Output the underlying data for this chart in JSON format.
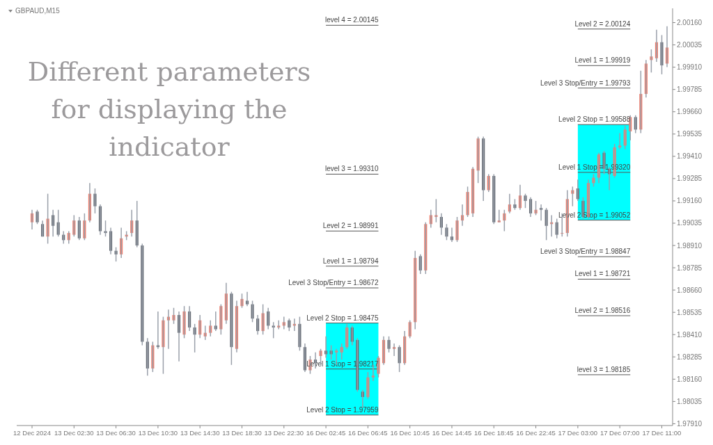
{
  "chart_data": {
    "type": "candlestick",
    "title": "GBPAUD,M15",
    "categories": [
      "12 Dec 2024",
      null,
      null,
      null,
      null,
      null,
      null,
      null,
      "13 Dec 02:30",
      null,
      null,
      null,
      null,
      null,
      null,
      null,
      "13 Dec 06:30",
      null,
      null,
      null,
      null,
      null,
      null,
      null,
      "13 Dec 10:30",
      null,
      null,
      null,
      null,
      null,
      null,
      null,
      "13 Dec 14:30",
      null,
      null,
      null,
      null,
      null,
      null,
      null,
      "13 Dec 18:30",
      null,
      null,
      null,
      null,
      null,
      null,
      null,
      "13 Dec 22:30",
      null,
      null,
      null,
      null,
      null,
      null,
      null,
      "16 Dec 02:45",
      null,
      null,
      null,
      null,
      null,
      null,
      null,
      "16 Dec 06:45",
      null,
      null,
      null,
      null,
      null,
      null,
      null,
      "16 Dec 10:45",
      null,
      null,
      null,
      null,
      null,
      null,
      null,
      "16 Dec 14:45",
      null,
      null,
      null,
      null,
      null,
      null,
      null,
      "16 Dec 18:45",
      null,
      null,
      null,
      null,
      null,
      null,
      null,
      "16 Dec 22:45",
      null,
      null,
      null,
      null,
      null,
      null,
      null,
      "17 Dec 03:00",
      null,
      null,
      null,
      null,
      null,
      null,
      null,
      "17 Dec 07:00",
      null,
      null,
      null,
      null,
      null,
      null,
      null,
      "17 Dec 11:00",
      null
    ],
    "ohlc": [
      [
        1.9904,
        1.9911,
        1.99,
        1.9909
      ],
      [
        1.991,
        1.9911,
        1.9903,
        1.9904
      ],
      [
        1.9903,
        1.9905,
        1.9896,
        1.9896
      ],
      [
        1.9896,
        1.992,
        1.9892,
        1.9906
      ],
      [
        1.9908,
        1.9911,
        1.9896,
        1.9902
      ],
      [
        1.9904,
        1.9911,
        1.9896,
        1.9897
      ],
      [
        1.9897,
        1.9899,
        1.9892,
        1.9894
      ],
      [
        1.9894,
        1.9899,
        1.9892,
        1.9898
      ],
      [
        1.9897,
        1.9908,
        1.9896,
        1.9905
      ],
      [
        1.9905,
        1.9907,
        1.9894,
        1.9895
      ],
      [
        1.9895,
        1.9909,
        1.9894,
        1.9905
      ],
      [
        1.9905,
        1.9926,
        1.9904,
        1.992
      ],
      [
        1.992,
        1.9923,
        1.9909,
        1.9913
      ],
      [
        1.9913,
        1.9914,
        1.9897,
        1.9899
      ],
      [
        1.9899,
        1.9905,
        1.9896,
        1.9898
      ],
      [
        1.9899,
        1.9901,
        1.9886,
        1.9888
      ],
      [
        1.9888,
        1.989,
        1.9882,
        1.9886
      ],
      [
        1.9886,
        1.9901,
        1.9884,
        1.9895
      ],
      [
        1.9896,
        1.9899,
        1.9894,
        1.9897
      ],
      [
        1.9898,
        1.9911,
        1.9896,
        1.9905
      ],
      [
        1.9905,
        1.9916,
        1.989,
        1.9891
      ],
      [
        1.9891,
        1.9892,
        1.9835,
        1.9837
      ],
      [
        1.9837,
        1.9839,
        1.9818,
        1.9822
      ],
      [
        1.9822,
        1.9837,
        1.982,
        1.9835
      ],
      [
        1.9835,
        1.9854,
        1.9833,
        1.9834
      ],
      [
        1.9834,
        1.9851,
        1.9819,
        1.9849
      ],
      [
        1.9849,
        1.9855,
        1.9833,
        1.9851
      ],
      [
        1.9849,
        1.9856,
        1.9847,
        1.9852
      ],
      [
        1.9852,
        1.9854,
        1.9826,
        1.9842
      ],
      [
        1.9841,
        1.9857,
        1.9839,
        1.9854
      ],
      [
        1.9854,
        1.9857,
        1.9843,
        1.9845
      ],
      [
        1.9845,
        1.9847,
        1.9831,
        1.9841
      ],
      [
        1.9841,
        1.9852,
        1.9839,
        1.9849
      ],
      [
        1.984,
        1.9846,
        1.9838,
        1.9842
      ],
      [
        1.9842,
        1.9849,
        1.984,
        1.9846
      ],
      [
        1.9846,
        1.9854,
        1.9843,
        1.9844
      ],
      [
        1.9844,
        1.9858,
        1.9841,
        1.9857
      ],
      [
        1.9849,
        1.987,
        1.9847,
        1.9864
      ],
      [
        1.9864,
        1.9865,
        1.9824,
        1.9834
      ],
      [
        1.9833,
        1.986,
        1.9831,
        1.9857
      ],
      [
        1.9857,
        1.9864,
        1.9856,
        1.9861
      ],
      [
        1.986,
        1.9865,
        1.9857,
        1.9858
      ],
      [
        1.9858,
        1.986,
        1.9848,
        1.985
      ],
      [
        1.985,
        1.9852,
        1.9841,
        1.9843
      ],
      [
        1.9843,
        1.9858,
        1.9841,
        1.9853
      ],
      [
        1.9854,
        1.9856,
        1.9844,
        1.9846
      ],
      [
        1.9846,
        1.9848,
        1.9839,
        1.9845
      ],
      [
        1.9845,
        1.9849,
        1.9844,
        1.9846
      ],
      [
        1.9846,
        1.9851,
        1.9844,
        1.9848
      ],
      [
        1.9849,
        1.985,
        1.9843,
        1.9845
      ],
      [
        1.9846,
        1.985,
        1.9843,
        1.9847
      ],
      [
        1.9847,
        1.9851,
        1.9832,
        1.9834
      ],
      [
        1.9834,
        1.9836,
        1.982,
        1.9821
      ],
      [
        1.9821,
        1.9829,
        1.9819,
        1.9827
      ],
      [
        1.9827,
        1.9831,
        1.9822,
        1.9825
      ],
      [
        1.9829,
        1.9833,
        1.9824,
        1.9832
      ],
      [
        1.9832,
        1.984,
        1.9828,
        1.983
      ],
      [
        1.9832,
        1.9835,
        1.9827,
        1.983
      ],
      [
        1.9831,
        1.9833,
        1.9824,
        1.9832
      ],
      [
        1.9831,
        1.9836,
        1.9827,
        1.9834
      ],
      [
        1.9834,
        1.9847,
        1.9833,
        1.9845
      ],
      [
        1.9845,
        1.9846,
        1.9835,
        1.9837
      ],
      [
        1.9838,
        1.9839,
        1.9809,
        1.981
      ],
      [
        1.9809,
        1.981,
        1.98,
        1.9806
      ],
      [
        1.9806,
        1.982,
        1.9805,
        1.9817
      ],
      [
        1.9817,
        1.9824,
        1.9815,
        1.9818
      ],
      [
        1.9819,
        1.9829,
        1.9817,
        1.9828
      ],
      [
        1.9825,
        1.984,
        1.9824,
        1.9838
      ],
      [
        1.9838,
        1.984,
        1.9831,
        1.9833
      ],
      [
        1.9833,
        1.9836,
        1.9829,
        1.9834
      ],
      [
        1.9834,
        1.9835,
        1.982,
        1.9825
      ],
      [
        1.9825,
        1.9843,
        1.9824,
        1.984
      ],
      [
        1.984,
        1.9849,
        1.9839,
        1.9848
      ],
      [
        1.9848,
        1.9888,
        1.9844,
        1.9884
      ],
      [
        1.9885,
        1.9886,
        1.9875,
        1.9877
      ],
      [
        1.9877,
        1.9904,
        1.9875,
        1.9903
      ],
      [
        1.9903,
        1.9911,
        1.9901,
        1.9908
      ],
      [
        1.9907,
        1.9917,
        1.9904,
        1.9908
      ],
      [
        1.9907,
        1.9909,
        1.9897,
        1.9901
      ],
      [
        1.9901,
        1.9903,
        1.9894,
        1.9896
      ],
      [
        1.9896,
        1.9901,
        1.9893,
        1.9894
      ],
      [
        1.9894,
        1.9907,
        1.9893,
        1.9905
      ],
      [
        1.9905,
        1.9914,
        1.9902,
        1.9908
      ],
      [
        1.9908,
        1.9924,
        1.9907,
        1.9921
      ],
      [
        1.9909,
        1.9935,
        1.9907,
        1.9934
      ],
      [
        1.9933,
        1.9952,
        1.9926,
        1.9951
      ],
      [
        1.9951,
        1.9952,
        1.9916,
        1.9922
      ],
      [
        1.9922,
        1.9931,
        1.9921,
        1.993
      ],
      [
        1.993,
        1.9931,
        1.9903,
        1.9904
      ],
      [
        1.9904,
        1.9911,
        1.9904,
        1.9905
      ],
      [
        1.9905,
        1.9911,
        1.9899,
        1.9909
      ],
      [
        1.991,
        1.992,
        1.9909,
        1.9914
      ],
      [
        1.9914,
        1.9917,
        1.9911,
        1.9912
      ],
      [
        1.9912,
        1.9925,
        1.9911,
        1.9919
      ],
      [
        1.9919,
        1.992,
        1.9912,
        1.9916
      ],
      [
        1.9917,
        1.9918,
        1.9907,
        1.9909
      ],
      [
        1.9909,
        1.9916,
        1.9908,
        1.9911
      ],
      [
        1.9912,
        1.9914,
        1.9905,
        1.9911
      ],
      [
        1.9911,
        1.9912,
        1.9894,
        1.9902
      ],
      [
        1.9903,
        1.9908,
        1.9896,
        1.9904
      ],
      [
        1.9904,
        1.9906,
        1.9895,
        1.9897
      ],
      [
        1.9898,
        1.9909,
        1.9896,
        1.9898
      ],
      [
        1.9898,
        1.9922,
        1.9896,
        1.9917
      ],
      [
        1.992,
        1.9924,
        1.9913,
        1.9922
      ],
      [
        1.9923,
        1.9928,
        1.9916,
        1.9917
      ],
      [
        1.9916,
        1.9918,
        1.9906,
        1.9907
      ],
      [
        1.9907,
        1.9928,
        1.9906,
        1.9926
      ],
      [
        1.9926,
        1.9931,
        1.9924,
        1.9929
      ],
      [
        1.9929,
        1.9943,
        1.9926,
        1.9942
      ],
      [
        1.9943,
        1.9944,
        1.9931,
        1.9934
      ],
      [
        1.9934,
        1.9935,
        1.9922,
        1.9931
      ],
      [
        1.993,
        1.9948,
        1.9929,
        1.9946
      ],
      [
        1.9946,
        1.9954,
        1.9945,
        1.9947
      ],
      [
        1.9947,
        1.9958,
        1.9945,
        1.9956
      ],
      [
        1.9955,
        1.9964,
        1.995,
        1.9963
      ],
      [
        1.9963,
        1.9964,
        1.9954,
        1.9956
      ],
      [
        1.9956,
        1.9989,
        1.9954,
        1.9976
      ],
      [
        1.9976,
        1.9995,
        1.9974,
        1.9993
      ],
      [
        1.9995,
        2.0001,
        1.9988,
        1.9997
      ],
      [
        1.9996,
        2.0012,
        1.9994,
        2.0005
      ],
      [
        2.0005,
        2.0009,
        1.9987,
        1.9992
      ],
      [
        1.9993,
        2.0014,
        1.9991,
        2.0002
      ]
    ],
    "ylim": [
      1.979,
      2.0024
    ],
    "yticks": [
      {
        "value": 1.9791,
        "label": "1.97910"
      },
      {
        "value": 1.98035,
        "label": "1.98035"
      },
      {
        "value": 1.9816,
        "label": "1.98160"
      },
      {
        "value": 1.98285,
        "label": "1.98285"
      },
      {
        "value": 1.9841,
        "label": "1.98410"
      },
      {
        "value": 1.98535,
        "label": "1.98535"
      },
      {
        "value": 1.9866,
        "label": "1.98660"
      },
      {
        "value": 1.98785,
        "label": "1.98785"
      },
      {
        "value": 1.9891,
        "label": "1.98910"
      },
      {
        "value": 1.99035,
        "label": "1.99035"
      },
      {
        "value": 1.9916,
        "label": "1.99160"
      },
      {
        "value": 1.99285,
        "label": "1.99285"
      },
      {
        "value": 1.9941,
        "label": "1.99410"
      },
      {
        "value": 1.99535,
        "label": "1.99535"
      },
      {
        "value": 1.9966,
        "label": "1.99660"
      },
      {
        "value": 1.99785,
        "label": "1.99785"
      },
      {
        "value": 1.9991,
        "label": "1.99910"
      },
      {
        "value": 2.00035,
        "label": "2.00035"
      },
      {
        "value": 2.0016,
        "label": "2.00160"
      }
    ],
    "bands": [
      {
        "axis": "y",
        "from": 1.97959,
        "to": 1.98475,
        "color": "#00ffff"
      },
      {
        "axis": "y",
        "from": 1.99052,
        "to": 1.99588,
        "color": "#00ffff"
      }
    ],
    "annotations": [
      "Different parameters for displaying the indicator"
    ],
    "ref_lines": [
      {
        "axis": "y",
        "value": 2.00145,
        "label": "level 4 = 2.00145"
      },
      {
        "axis": "y",
        "value": 1.9931,
        "label": "level 3 = 1.99310"
      },
      {
        "axis": "y",
        "value": 1.98991,
        "label": "Level 2 = 1.98991"
      },
      {
        "axis": "y",
        "value": 1.98794,
        "label": "Level 1 = 1.98794"
      },
      {
        "axis": "y",
        "value": 1.98672,
        "label": "Level 3 Stop/Entry = 1.98672"
      },
      {
        "axis": "y",
        "value": 1.98475,
        "label": "Level 2 Stop = 1.98475"
      },
      {
        "axis": "y",
        "value": 1.98217,
        "label": "Level 1 Stop = 1.98217"
      },
      {
        "axis": "y",
        "value": 1.97959,
        "label": "Level 2 Stop = 1.97959"
      },
      {
        "axis": "y",
        "value": 2.00124,
        "label": "Level 2 = 2.00124"
      },
      {
        "axis": "y",
        "value": 1.99919,
        "label": "Level 1 = 1.99919"
      },
      {
        "axis": "y",
        "value": 1.99793,
        "label": "Level 3 Stop/Entry = 1.99793"
      },
      {
        "axis": "y",
        "value": 1.99588,
        "label": "Level 2 Stop = 1.99588"
      },
      {
        "axis": "y",
        "value": 1.9932,
        "label": "Level 1 Stop = 1.99320"
      },
      {
        "axis": "y",
        "value": 1.99052,
        "label": "Level 2 Stop = 1.99052"
      },
      {
        "axis": "y",
        "value": 1.98847,
        "label": "Level 3 Stop/Entry = 1.98847"
      },
      {
        "axis": "y",
        "value": 1.98721,
        "label": "Level 1 = 1.98721"
      },
      {
        "axis": "y",
        "value": 1.98516,
        "label": "Level 2 = 1.98516"
      },
      {
        "axis": "y",
        "value": 1.98185,
        "label": "level 3 = 1.98185"
      }
    ]
  }
}
